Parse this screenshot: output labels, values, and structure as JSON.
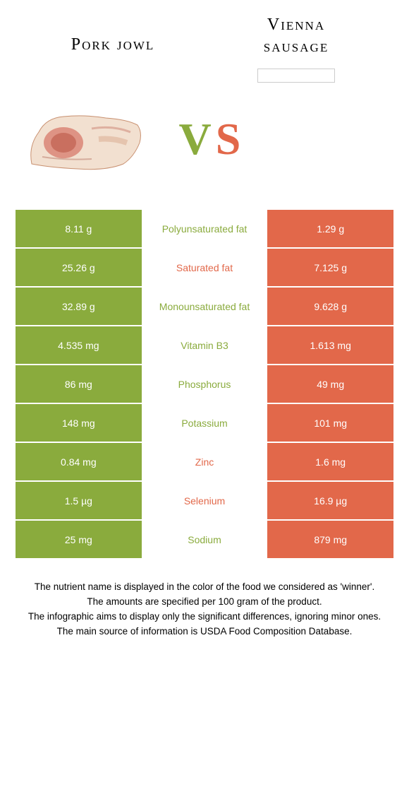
{
  "colors": {
    "green": "#8aab3d",
    "orange": "#e2684a",
    "white": "#ffffff"
  },
  "header": {
    "left_title": "Pork jowl",
    "right_title_line1": "Vienna",
    "right_title_line2": "sausage"
  },
  "vs": {
    "v": "V",
    "s": "S"
  },
  "rows": [
    {
      "left": "8.11 g",
      "label": "Polyunsaturated fat",
      "right": "1.29 g",
      "winner": "left"
    },
    {
      "left": "25.26 g",
      "label": "Saturated fat",
      "right": "7.125 g",
      "winner": "right"
    },
    {
      "left": "32.89 g",
      "label": "Monounsaturated fat",
      "right": "9.628 g",
      "winner": "left"
    },
    {
      "left": "4.535 mg",
      "label": "Vitamin B3",
      "right": "1.613 mg",
      "winner": "left"
    },
    {
      "left": "86 mg",
      "label": "Phosphorus",
      "right": "49 mg",
      "winner": "left"
    },
    {
      "left": "148 mg",
      "label": "Potassium",
      "right": "101 mg",
      "winner": "left"
    },
    {
      "left": "0.84 mg",
      "label": "Zinc",
      "right": "1.6 mg",
      "winner": "right"
    },
    {
      "left": "1.5 µg",
      "label": "Selenium",
      "right": "16.9 µg",
      "winner": "right"
    },
    {
      "left": "25 mg",
      "label": "Sodium",
      "right": "879 mg",
      "winner": "left"
    }
  ],
  "footer": {
    "line1": "The nutrient name is displayed in the color of the food we considered as 'winner'.",
    "line2": "The amounts are specified per 100 gram of the product.",
    "line3": "The infographic aims to display only the significant differences, ignoring minor ones.",
    "line4": "The main source of information is USDA Food Composition Database."
  }
}
